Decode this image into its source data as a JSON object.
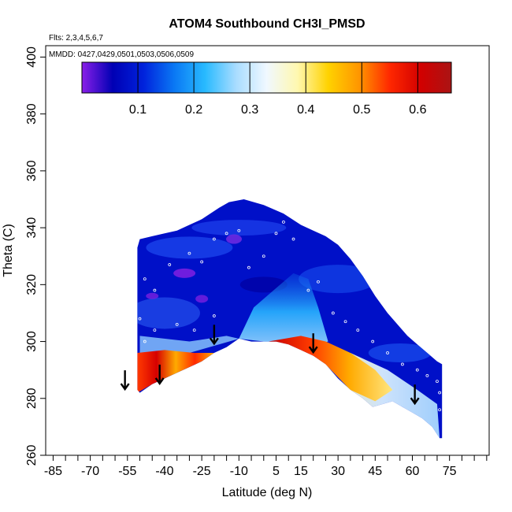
{
  "chart_data": {
    "type": "heatmap",
    "title": "ATOM4 Southbound CH3I_PMSD",
    "flights_label": "Flts: 2,3,4,5,6,7",
    "dates_label": "MMDD: 0427,0429,0501,0503,0506,0509",
    "xlabel": "Latitude (deg N)",
    "ylabel": "Theta (C)",
    "xlim": [
      -88,
      91
    ],
    "ylim": [
      260,
      404
    ],
    "x_ticks": [
      -85,
      -70,
      -55,
      -40,
      -25,
      -10,
      5,
      15,
      30,
      45,
      60,
      75
    ],
    "x_minor_ticks": [
      -80,
      -75,
      -65,
      -60,
      -50,
      -45,
      -35,
      -30,
      -20,
      -15,
      -5,
      0,
      10,
      20,
      25,
      35,
      40,
      50,
      55,
      65,
      70,
      80,
      85,
      90
    ],
    "y_ticks": [
      260,
      280,
      300,
      320,
      340,
      360,
      380,
      400
    ],
    "colorbar": {
      "range": [
        0.0,
        0.66
      ],
      "ticks": [
        0.1,
        0.2,
        0.3,
        0.4,
        0.5,
        0.6
      ],
      "colors": [
        "#8a1fe8",
        "#0000b4",
        "#0022dc",
        "#0a78f4",
        "#28baff",
        "#a8dcff",
        "#f0f8ff",
        "#fff8b0",
        "#ffd200",
        "#ff9600",
        "#ff2800",
        "#d20000",
        "#aa1414"
      ]
    },
    "series": [
      {
        "name": "background",
        "value": 0.1
      },
      {
        "name": "purple patches",
        "value": 0.02
      },
      {
        "name": "light blue mid-lat plume",
        "value": 0.22
      },
      {
        "name": "near-surface maximum",
        "value": 0.6
      }
    ],
    "arrows_lat": [
      -56,
      -42,
      -20,
      20,
      61
    ],
    "arrows_theta": [
      286,
      288,
      302,
      299,
      281
    ]
  }
}
